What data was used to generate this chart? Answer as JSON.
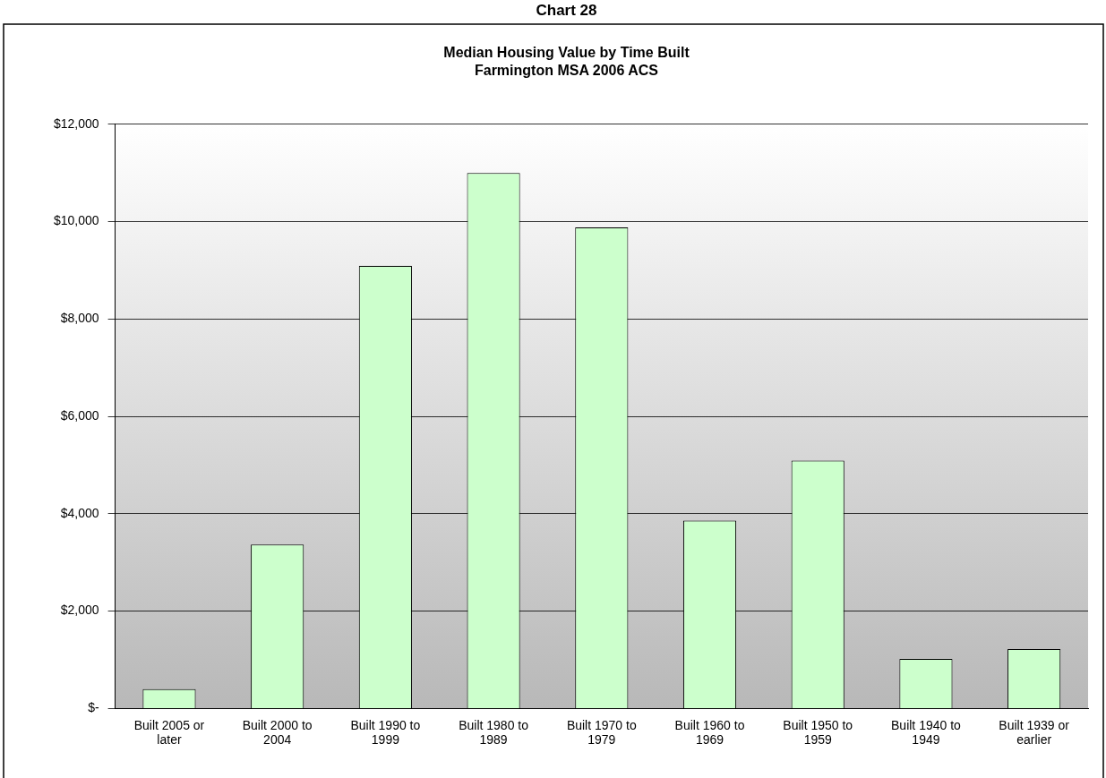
{
  "chart_data": {
    "type": "bar",
    "title": "Chart 28",
    "subtitle": [
      "Median Housing Value by Time Built",
      "Farmington MSA 2006 ACS"
    ],
    "categories": [
      "Built 2005 or later",
      "Built 2000 to 2004",
      "Built 1990 to 1999",
      "Built 1980 to 1989",
      "Built 1970 to 1979",
      "Built 1960 to 1969",
      "Built 1950 to 1959",
      "Built 1940 to 1949",
      "Built 1939 or earlier"
    ],
    "values": [
      400,
      3370,
      9090,
      11000,
      9880,
      3860,
      5090,
      1020,
      1220
    ],
    "color": "#ccffcc",
    "ylim": [
      0,
      12000
    ],
    "yticks": [
      {
        "value": 0,
        "label": "$-"
      },
      {
        "value": 2000,
        "label": "$2,000"
      },
      {
        "value": 4000,
        "label": "$4,000"
      },
      {
        "value": 6000,
        "label": "$6,000"
      },
      {
        "value": 8000,
        "label": "$8,000"
      },
      {
        "value": 10000,
        "label": "$10,000"
      },
      {
        "value": 12000,
        "label": "$12,000"
      }
    ],
    "grid": "y",
    "legend": false
  }
}
